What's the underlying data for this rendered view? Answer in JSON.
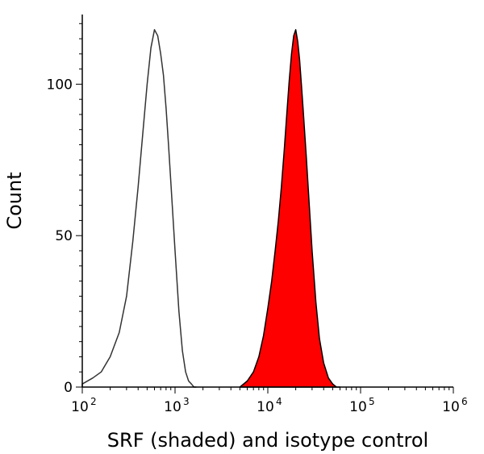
{
  "chart_data": {
    "type": "area",
    "title": "",
    "xlabel": "SRF (shaded) and isotype control",
    "ylabel": "Count",
    "xscale": "log",
    "xlim": [
      100,
      1000000
    ],
    "ylim": [
      0,
      123
    ],
    "x_ticks": [
      {
        "base": "10",
        "exp": "2"
      },
      {
        "base": "10",
        "exp": "3"
      },
      {
        "base": "10",
        "exp": "4"
      },
      {
        "base": "10",
        "exp": "5"
      },
      {
        "base": "10",
        "exp": "6"
      }
    ],
    "y_ticks": [
      "0",
      "50",
      "100"
    ],
    "y_tick_values": [
      0,
      50,
      100
    ],
    "grid": false,
    "legend": "none",
    "series": [
      {
        "name": "isotype control",
        "style": "outline",
        "color": "#333333",
        "x": [
          100,
          130,
          160,
          200,
          250,
          300,
          350,
          400,
          450,
          500,
          550,
          600,
          650,
          700,
          750,
          800,
          850,
          900,
          1000,
          1100,
          1200,
          1300,
          1400,
          1500,
          1600,
          1700
        ],
        "values": [
          1,
          3,
          5,
          10,
          18,
          30,
          48,
          66,
          84,
          100,
          112,
          118,
          116,
          110,
          103,
          92,
          80,
          68,
          45,
          25,
          12,
          5,
          2,
          1,
          0,
          0
        ]
      },
      {
        "name": "SRF",
        "style": "filled",
        "color": "#ff0000",
        "outline_color": "#000000",
        "x": [
          5000,
          6000,
          7000,
          8000,
          9000,
          10000,
          11000,
          12000,
          13000,
          14000,
          15000,
          16000,
          17000,
          18000,
          19000,
          20000,
          21000,
          22000,
          23000,
          24000,
          26000,
          28000,
          30000,
          33000,
          36000,
          40000,
          45000,
          50000,
          55000,
          60000
        ],
        "values": [
          0,
          2,
          5,
          10,
          17,
          26,
          35,
          45,
          55,
          66,
          78,
          90,
          101,
          110,
          116,
          118,
          114,
          108,
          100,
          92,
          76,
          60,
          45,
          28,
          16,
          8,
          3,
          1,
          0,
          0
        ]
      }
    ]
  }
}
